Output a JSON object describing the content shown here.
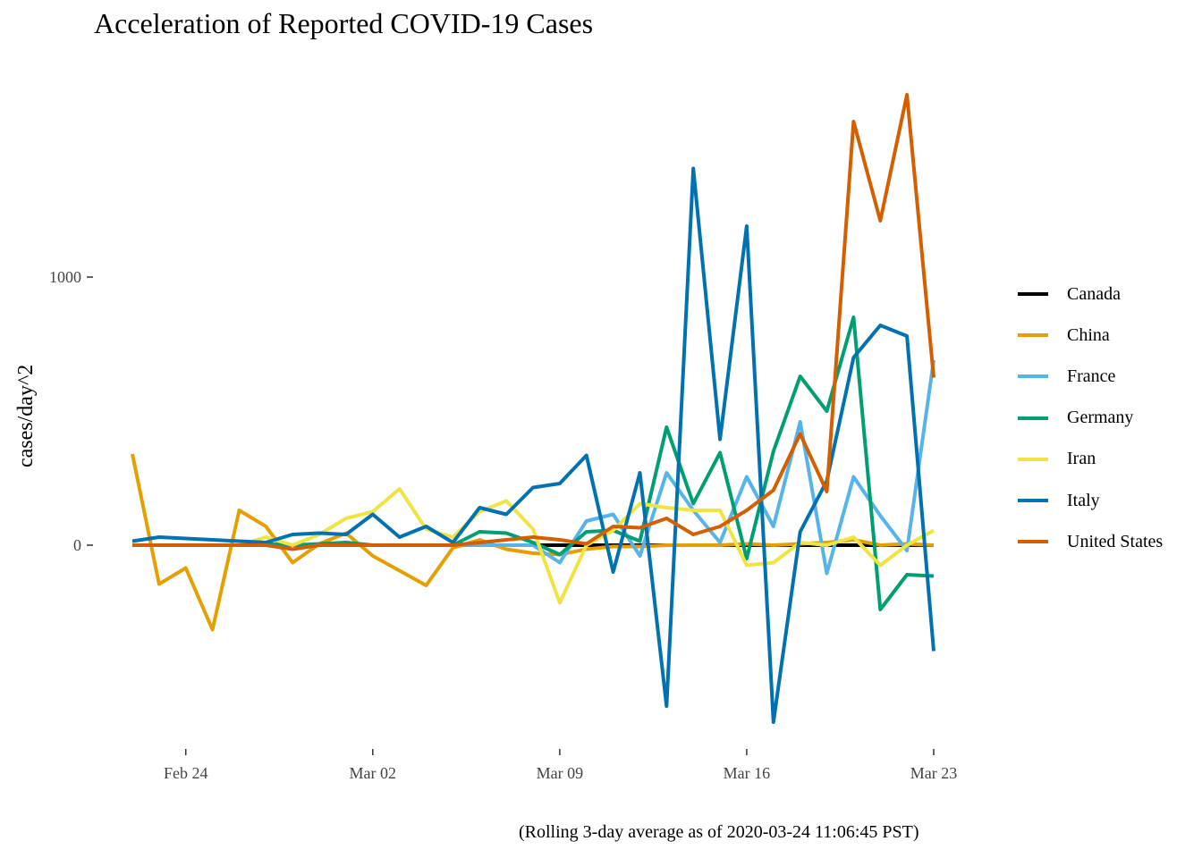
{
  "title": "Acceleration of Reported COVID-19 Cases",
  "caption": "(Rolling 3-day average as of 2020-03-24 11:06:45 PST)",
  "ylabel": "cases/day^2",
  "chart_data": {
    "type": "line",
    "title": "Acceleration of Reported COVID-19 Cases",
    "xlabel": "",
    "ylabel": "cases/day^2",
    "x": [
      "2020-02-22",
      "2020-02-23",
      "2020-02-24",
      "2020-02-25",
      "2020-02-26",
      "2020-02-27",
      "2020-02-28",
      "2020-02-29",
      "2020-03-01",
      "2020-03-02",
      "2020-03-03",
      "2020-03-04",
      "2020-03-05",
      "2020-03-06",
      "2020-03-07",
      "2020-03-08",
      "2020-03-09",
      "2020-03-10",
      "2020-03-11",
      "2020-03-12",
      "2020-03-13",
      "2020-03-14",
      "2020-03-15",
      "2020-03-16",
      "2020-03-17",
      "2020-03-18",
      "2020-03-19",
      "2020-03-20",
      "2020-03-21",
      "2020-03-22",
      "2020-03-23"
    ],
    "x_ticks": [
      {
        "date": "2020-02-24",
        "label": "Feb 24"
      },
      {
        "date": "2020-03-02",
        "label": "Mar 02"
      },
      {
        "date": "2020-03-09",
        "label": "Mar 09"
      },
      {
        "date": "2020-03-16",
        "label": "Mar 16"
      },
      {
        "date": "2020-03-23",
        "label": "Mar 23"
      }
    ],
    "y_ticks": [
      {
        "value": 0,
        "label": "0"
      },
      {
        "value": 1000,
        "label": "1000"
      }
    ],
    "ylim": [
      -780,
      1760
    ],
    "grid": false,
    "legend_position": "right",
    "series": [
      {
        "name": "Canada",
        "color": "#000000",
        "values": [
          0,
          0,
          0,
          0,
          0,
          0,
          0,
          0,
          0,
          0,
          0,
          0,
          0,
          0,
          0,
          0,
          0,
          0,
          0,
          0,
          0,
          0,
          0,
          0,
          0,
          0,
          0,
          0,
          0,
          0,
          0
        ]
      },
      {
        "name": "China",
        "color": "#E69F00",
        "values": [
          340,
          -145,
          -85,
          -315,
          130,
          70,
          -65,
          5,
          45,
          -40,
          -95,
          -150,
          -10,
          20,
          -15,
          -30,
          -35,
          -15,
          -5,
          -5,
          0,
          0,
          0,
          5,
          0,
          5,
          10,
          20,
          0,
          5,
          0
        ]
      },
      {
        "name": "France",
        "color": "#56B4E9",
        "values": [
          0,
          0,
          0,
          0,
          0,
          0,
          0,
          0,
          0,
          0,
          0,
          0,
          0,
          0,
          0,
          0,
          -65,
          90,
          115,
          -40,
          270,
          130,
          10,
          255,
          70,
          460,
          -105,
          255,
          110,
          -20,
          690
        ]
      },
      {
        "name": "Germany",
        "color": "#009E73",
        "values": [
          0,
          0,
          0,
          0,
          0,
          5,
          0,
          5,
          10,
          0,
          0,
          0,
          0,
          50,
          45,
          10,
          -35,
          50,
          55,
          15,
          440,
          155,
          345,
          -50,
          350,
          630,
          500,
          850,
          -240,
          -110,
          -115
        ]
      },
      {
        "name": "Iran",
        "color": "#F0E442",
        "values": [
          0,
          0,
          0,
          0,
          0,
          30,
          0,
          40,
          100,
          125,
          210,
          60,
          30,
          125,
          165,
          60,
          -215,
          0,
          55,
          155,
          140,
          130,
          130,
          -75,
          -65,
          10,
          0,
          30,
          -75,
          0,
          55
        ]
      },
      {
        "name": "Italy",
        "color": "#0072B2",
        "values": [
          15,
          30,
          25,
          20,
          15,
          10,
          40,
          45,
          40,
          115,
          30,
          70,
          10,
          140,
          115,
          215,
          230,
          335,
          -100,
          270,
          -600,
          1405,
          395,
          1190,
          -660,
          50,
          240,
          700,
          820,
          780,
          -395
        ]
      },
      {
        "name": "United States",
        "color": "#D55E00",
        "values": [
          0,
          0,
          0,
          0,
          0,
          0,
          -15,
          0,
          0,
          0,
          0,
          0,
          0,
          10,
          20,
          30,
          20,
          5,
          70,
          65,
          100,
          40,
          70,
          130,
          205,
          415,
          200,
          1580,
          1210,
          1680,
          625
        ]
      }
    ]
  }
}
